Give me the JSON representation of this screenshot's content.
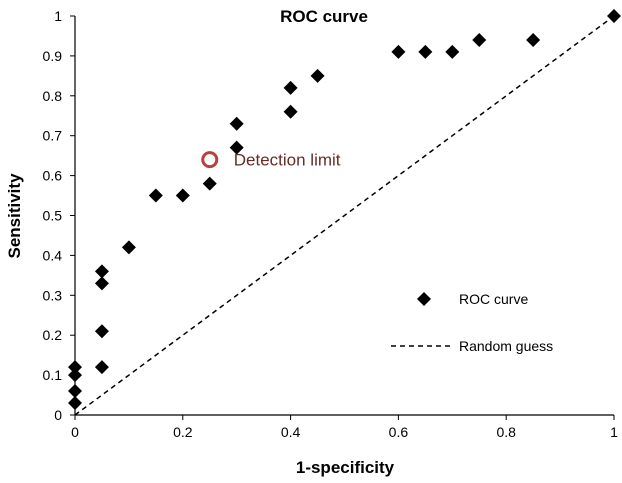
{
  "chart_data": {
    "type": "scatter",
    "title": "ROC curve",
    "xlabel": "1-specificity",
    "ylabel": "Sensitivity",
    "xlim": [
      0,
      1
    ],
    "ylim": [
      0,
      1
    ],
    "xticks": [
      "0",
      "0.2",
      "0.4",
      "0.6",
      "0.8",
      "1"
    ],
    "yticks": [
      "0",
      "0.1",
      "0.2",
      "0.3",
      "0.4",
      "0.5",
      "0.6",
      "0.7",
      "0.8",
      "0.9",
      "1"
    ],
    "grid": false,
    "legend_position": "bottom-right",
    "series": [
      {
        "name": "ROC curve",
        "marker": "diamond",
        "color": "#000000",
        "points": [
          [
            0,
            0.03
          ],
          [
            0,
            0.06
          ],
          [
            0,
            0.1
          ],
          [
            0,
            0.12
          ],
          [
            0.05,
            0.12
          ],
          [
            0.05,
            0.21
          ],
          [
            0.05,
            0.33
          ],
          [
            0.05,
            0.36
          ],
          [
            0.1,
            0.42
          ],
          [
            0.15,
            0.55
          ],
          [
            0.2,
            0.55
          ],
          [
            0.25,
            0.58
          ],
          [
            0.3,
            0.67
          ],
          [
            0.3,
            0.73
          ],
          [
            0.4,
            0.76
          ],
          [
            0.4,
            0.82
          ],
          [
            0.45,
            0.85
          ],
          [
            0.6,
            0.91
          ],
          [
            0.65,
            0.91
          ],
          [
            0.7,
            0.91
          ],
          [
            0.75,
            0.94
          ],
          [
            0.85,
            0.94
          ],
          [
            1,
            1
          ]
        ]
      },
      {
        "name": "Random guess",
        "line_style": "dashed",
        "color": "#000000",
        "points": [
          [
            0,
            0
          ],
          [
            1,
            1
          ]
        ]
      }
    ],
    "annotations": [
      {
        "text": "Detection limit",
        "x": 0.25,
        "y": 0.64,
        "marker": "circle",
        "color": "#b5433c"
      }
    ]
  }
}
